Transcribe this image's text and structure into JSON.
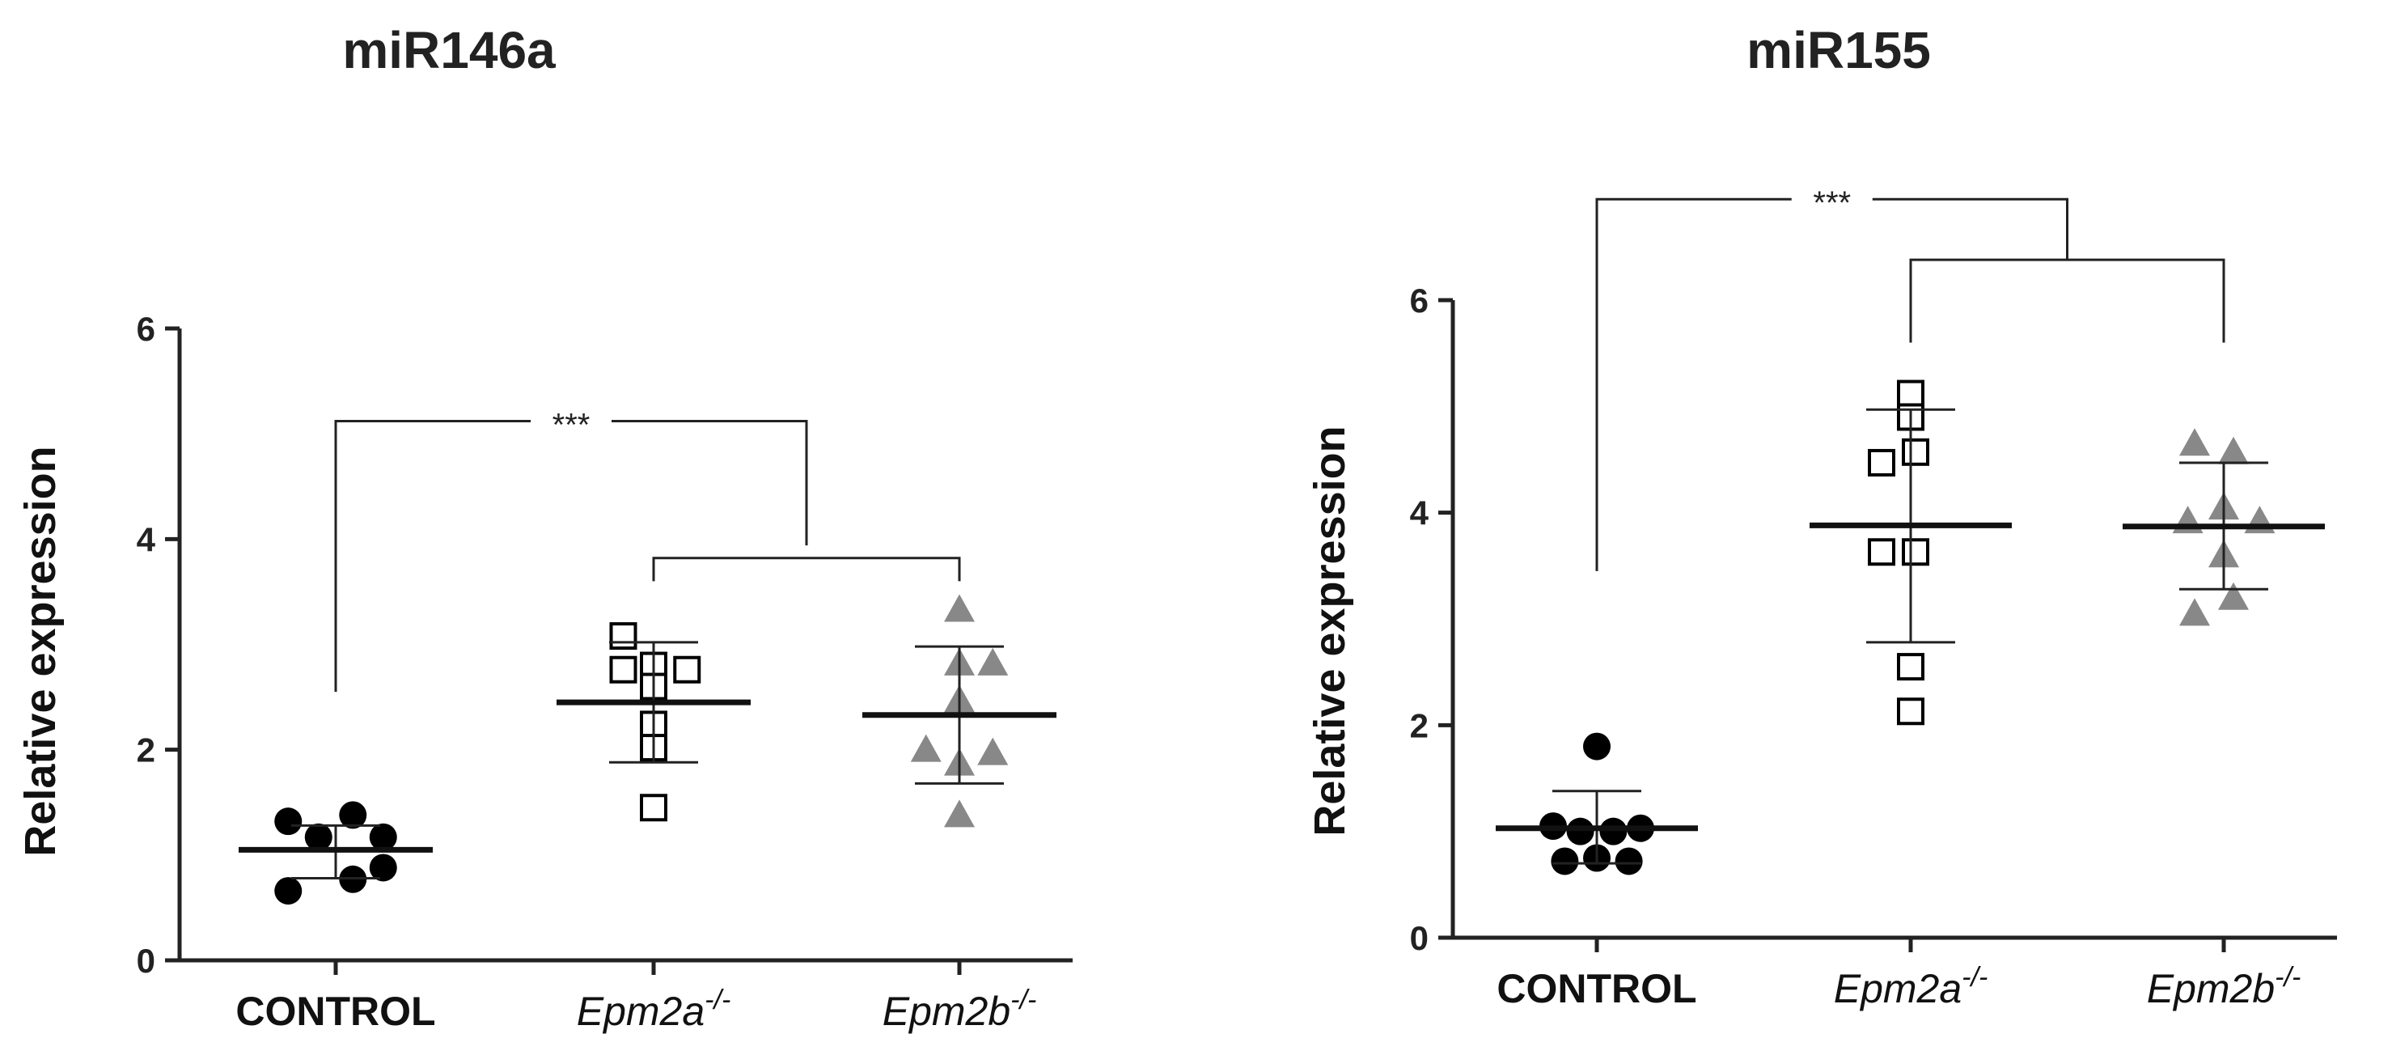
{
  "chart_data": [
    {
      "type": "scatter",
      "title": "miR146a",
      "ylabel": "Relative expression",
      "xlabel": "",
      "ylim": [
        0,
        6
      ],
      "yticks": [
        0,
        2,
        4,
        6
      ],
      "categories": [
        {
          "name": "CONTROL",
          "style": "bold",
          "sup": ""
        },
        {
          "name": "Epm2a",
          "style": "italic",
          "sup": "-/-"
        },
        {
          "name": "Epm2b",
          "style": "italic",
          "sup": "-/-"
        }
      ],
      "groups": [
        {
          "category": "CONTROL",
          "marker": "circle",
          "color": "#000000",
          "points": [
            [
              -0.47,
              1.32
            ],
            [
              -0.17,
              1.17
            ],
            [
              0.17,
              1.38
            ],
            [
              0.47,
              1.17
            ],
            [
              -0.47,
              0.66
            ],
            [
              0.17,
              0.77
            ],
            [
              0.47,
              0.88
            ]
          ],
          "mean": 1.05,
          "sd_low": 0.78,
          "sd_high": 1.28
        },
        {
          "category": "Epm2a",
          "marker": "open-square",
          "color": "#000000",
          "points": [
            [
              -0.3,
              3.08
            ],
            [
              -0.3,
              2.76
            ],
            [
              0.0,
              2.8
            ],
            [
              0.33,
              2.76
            ],
            [
              0.0,
              2.6
            ],
            [
              0.0,
              2.24
            ],
            [
              0.0,
              2.02
            ],
            [
              0.0,
              1.45
            ]
          ],
          "mean": 2.45,
          "sd_low": 1.88,
          "sd_high": 3.02
        },
        {
          "category": "Epm2b",
          "marker": "triangle",
          "color": "#888888",
          "points": [
            [
              0.0,
              3.33
            ],
            [
              0.0,
              2.82
            ],
            [
              0.33,
              2.82
            ],
            [
              0.0,
              2.47
            ],
            [
              -0.33,
              2.0
            ],
            [
              0.33,
              1.97
            ],
            [
              0.0,
              1.87
            ],
            [
              0.0,
              1.38
            ]
          ],
          "mean": 2.33,
          "sd_low": 1.68,
          "sd_high": 2.98
        }
      ],
      "significance": {
        "label": "***",
        "left_drop": 2.55,
        "top": 5.12,
        "right_drop": 3.94,
        "sub_top": 3.82,
        "sub_drop": 3.6
      }
    },
    {
      "type": "scatter",
      "title": "miR155",
      "ylabel": "Relative expression",
      "xlabel": "",
      "ylim": [
        0,
        6
      ],
      "yticks": [
        0,
        2,
        4,
        6
      ],
      "categories": [
        {
          "name": "CONTROL",
          "style": "bold",
          "sup": ""
        },
        {
          "name": "Epm2a",
          "style": "italic",
          "sup": "-/-"
        },
        {
          "name": "Epm2b",
          "style": "italic",
          "sup": "-/-"
        }
      ],
      "groups": [
        {
          "category": "CONTROL",
          "marker": "circle",
          "color": "#000000",
          "points": [
            [
              0.0,
              1.8
            ],
            [
              -0.45,
              1.05
            ],
            [
              -0.17,
              1.0
            ],
            [
              0.17,
              1.0
            ],
            [
              0.45,
              1.03
            ],
            [
              -0.33,
              0.72
            ],
            [
              0.0,
              0.75
            ],
            [
              0.33,
              0.72
            ]
          ],
          "mean": 1.03,
          "sd_low": 0.7,
          "sd_high": 1.38
        },
        {
          "category": "Epm2a",
          "marker": "open-square",
          "color": "#000000",
          "points": [
            [
              0.0,
              5.12
            ],
            [
              0.0,
              4.9
            ],
            [
              -0.3,
              4.47
            ],
            [
              0.05,
              4.57
            ],
            [
              -0.3,
              3.63
            ],
            [
              0.05,
              3.63
            ],
            [
              0.0,
              2.55
            ],
            [
              0.0,
              2.13
            ]
          ],
          "mean": 3.88,
          "sd_low": 2.78,
          "sd_high": 4.97
        },
        {
          "category": "Epm2b",
          "marker": "triangle",
          "color": "#888888",
          "points": [
            [
              -0.3,
              4.65
            ],
            [
              0.1,
              4.57
            ],
            [
              0.0,
              4.05
            ],
            [
              -0.37,
              3.92
            ],
            [
              0.37,
              3.92
            ],
            [
              0.0,
              3.6
            ],
            [
              -0.3,
              3.05
            ],
            [
              0.1,
              3.2
            ]
          ],
          "mean": 3.87,
          "sd_low": 3.28,
          "sd_high": 4.47
        }
      ],
      "significance": {
        "label": "***",
        "left_drop": 3.45,
        "top": 6.95,
        "right_drop": 6.38,
        "sub_top": 6.38,
        "sub_drop": 5.6
      }
    }
  ]
}
